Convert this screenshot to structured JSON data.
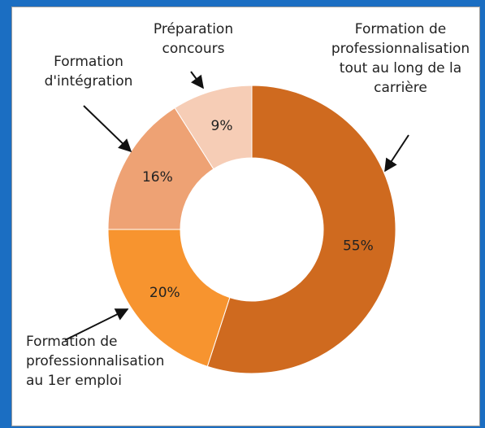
{
  "chart_data": {
    "type": "donut",
    "categories": [
      "Formation de professionnalisation tout au long de la carrière",
      "Formation de professionnalisation au 1er emploi",
      "Formation d'intégration",
      "Préparation concours"
    ],
    "values": [
      55,
      20,
      16,
      9
    ],
    "value_labels": [
      "55%",
      "20%",
      "16%",
      "9%"
    ],
    "colors": [
      "#cf6a1f",
      "#f7942f",
      "#eea274",
      "#f6cdb6"
    ]
  }
}
